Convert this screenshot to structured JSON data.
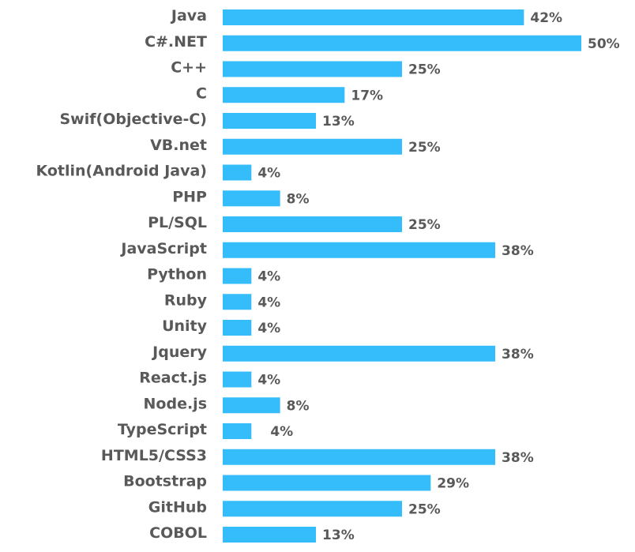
{
  "chart_data": {
    "type": "bar",
    "orientation": "horizontal",
    "categories": [
      "Java",
      "C#.NET",
      "C++",
      "C",
      "Swif(Objective-C)",
      "VB.net",
      "Kotlin(Android Java)",
      "PHP",
      "PL/SQL",
      "JavaScript",
      "Python",
      "Ruby",
      "Unity",
      "Jquery",
      "React.js",
      "Node.js",
      "TypeScript",
      "HTML5/CSS3",
      "Bootstrap",
      "GitHub",
      "COBOL"
    ],
    "values": [
      42,
      50,
      25,
      17,
      13,
      25,
      4,
      8,
      25,
      38,
      4,
      4,
      4,
      38,
      4,
      8,
      4,
      38,
      29,
      25,
      13
    ],
    "value_labels": [
      "42%",
      "50%",
      "25%",
      "17%",
      "13%",
      "25%",
      "4%",
      "8%",
      "25%",
      "38%",
      "4%",
      "4%",
      "4%",
      "38%",
      "4%",
      "8%",
      "4%",
      "38%",
      "29%",
      "25%",
      "13%"
    ],
    "xlim": [
      0,
      50
    ],
    "grid": false,
    "legend": "none",
    "bar_color": "#35BDFB",
    "text_color": "#595959"
  }
}
